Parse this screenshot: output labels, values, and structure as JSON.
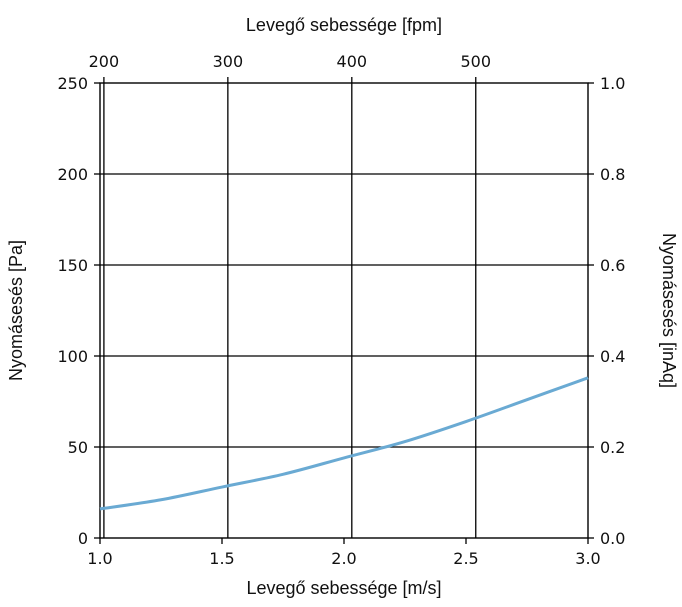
{
  "chart_data": {
    "type": "line",
    "x_axis": {
      "label": "Levegő sebessége [m/s]",
      "range": [
        1.0,
        3.0
      ],
      "ticks": [
        1.0,
        1.5,
        2.0,
        2.5,
        3.0
      ],
      "tick_labels": [
        "1.0",
        "1.5",
        "2.0",
        "2.5",
        "3.0"
      ]
    },
    "x_axis_top": {
      "label": "Levegő sebessége [fpm]",
      "range": [
        196.85,
        590.55
      ],
      "ticks": [
        200,
        300,
        400,
        500
      ],
      "tick_labels": [
        "200",
        "300",
        "400",
        "500"
      ]
    },
    "y_axis_left": {
      "label": "Nyomásesés [Pa]",
      "range": [
        0,
        250
      ],
      "ticks": [
        0,
        50,
        100,
        150,
        200,
        250
      ],
      "tick_labels": [
        "0",
        "50",
        "100",
        "150",
        "200",
        "250"
      ]
    },
    "y_axis_right": {
      "label": "Nyomásesés [inAq]",
      "range": [
        0.0,
        1.0
      ],
      "ticks": [
        0.0,
        0.2,
        0.4,
        0.6,
        0.8,
        1.0
      ],
      "tick_labels": [
        "0.0",
        "0.2",
        "0.4",
        "0.6",
        "0.8",
        "1.0"
      ]
    },
    "series": [
      {
        "color": "#6aaad3",
        "x": [
          1.0,
          1.25,
          1.5,
          1.75,
          2.0,
          2.25,
          2.5,
          2.75,
          3.0
        ],
        "y": [
          16,
          21,
          28,
          35,
          44,
          53,
          64,
          76,
          88
        ]
      }
    ],
    "grid": true,
    "colors": {
      "grid": "#000000",
      "line": "#6aaad3"
    }
  }
}
